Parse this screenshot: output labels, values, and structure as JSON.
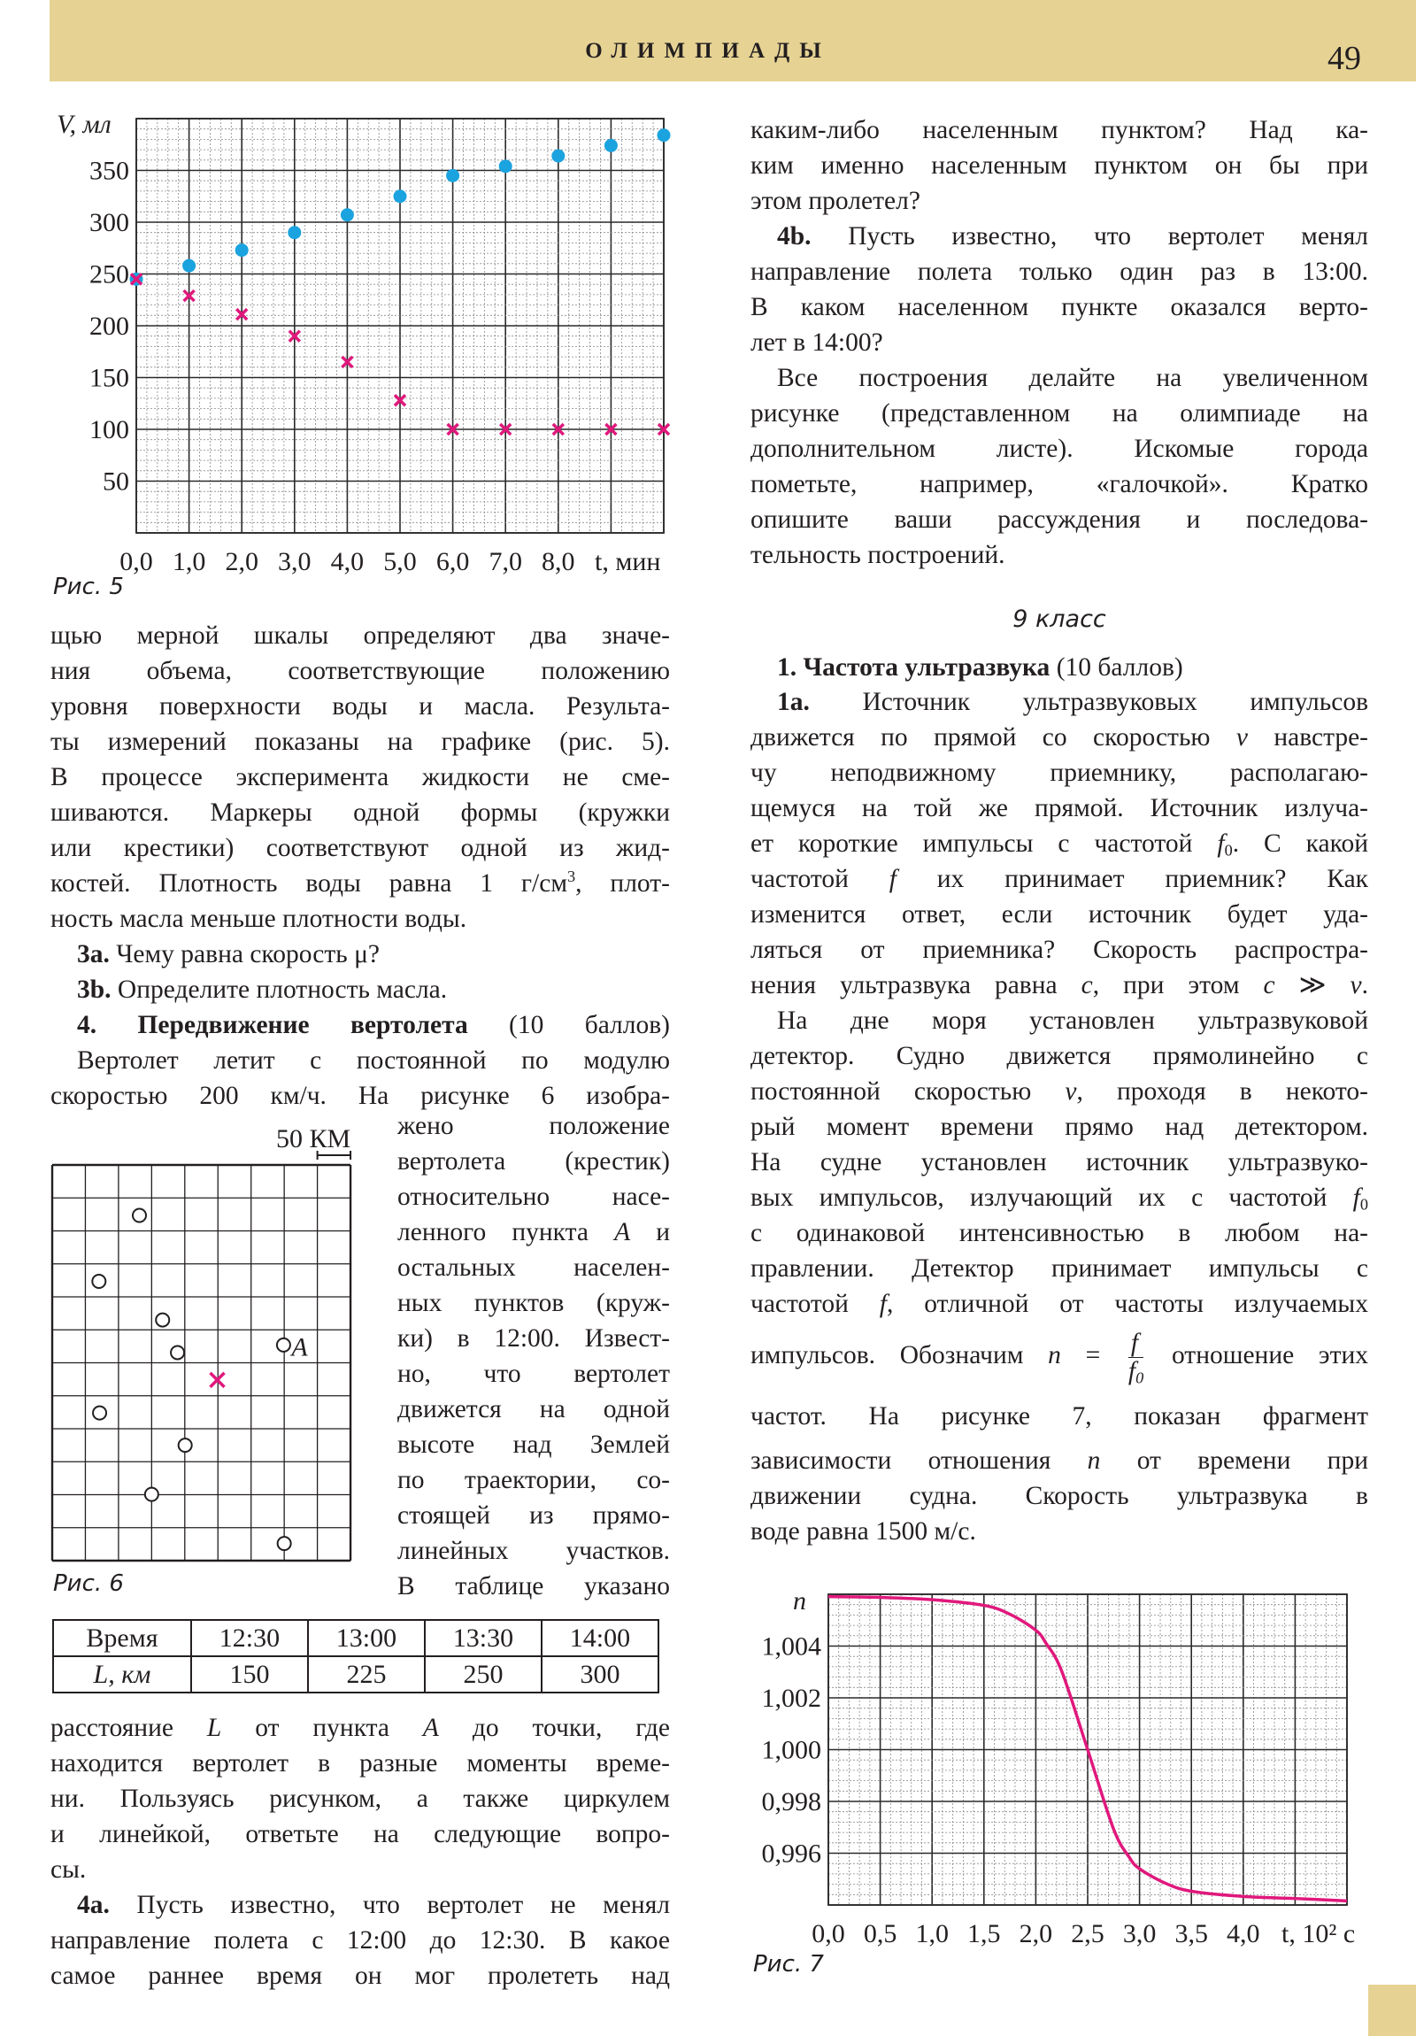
{
  "header": {
    "title": "ОЛИМПИАДЫ",
    "page_number": "49",
    "band_color": "#e6d394"
  },
  "text": {
    "L1": [
      "щью мерной шкалы определяют два значе-",
      "ния объема, соответствующие положению",
      "уровня поверхности воды и масла. Результа-",
      "ты измерений показаны на графике (рис. 5).",
      "В процессе эксперимента жидкости не сме-",
      "шиваются. Маркеры одной формы (кружки",
      "или крестики) соответствуют одной из жид-",
      {
        "s": [
          "костей. Плотность воды равна 1 г/см",
          {
            "sup": "3"
          },
          ", плот-"
        ]
      },
      {
        "s": [
          "ность масла меньше плотности воды."
        ],
        "end": true
      },
      {
        "s": [
          {
            "b": "3a."
          },
          " Чему равна скорость μ?"
        ],
        "ind": true,
        "end": true
      },
      {
        "s": [
          {
            "b": "3b."
          },
          " Определите плотность масла."
        ],
        "ind": true,
        "end": true
      },
      {
        "s": [
          {
            "b": "4. Передвижение вертолета"
          },
          " (10 баллов)"
        ],
        "ind": true
      },
      {
        "s": [
          "Вертолет летит с постоянной по модулю"
        ],
        "ind": true
      },
      "скоростью 200 км/ч. На рисунке 6 изобра-"
    ],
    "L2": [
      "жено положение",
      "вертолета (крестик)",
      "относительно насе-",
      {
        "s": [
          "ленного пункта ",
          {
            "i": "A"
          },
          " и"
        ]
      },
      "остальных населен-",
      "ных пунктов (круж-",
      "ки) в 12:00. Извест-",
      "но, что вертолет",
      "движется на одной",
      "высоте над Землей",
      "по траектории, со-",
      "стоящей из прямо-",
      "линейных участков.",
      "В таблице указано"
    ],
    "L3": [
      {
        "s": [
          "расстояние ",
          {
            "i": "L"
          },
          " от пункта ",
          {
            "i": "A"
          },
          " до точки, где"
        ]
      },
      "находится вертолет в разные моменты време-",
      "ни. Пользуясь рисунком, а также циркулем",
      "и линейкой, ответьте на следующие вопро-",
      {
        "s": [
          "сы."
        ],
        "end": true
      },
      {
        "s": [
          {
            "b": "4a."
          },
          " Пусть известно, что вертолет не менял"
        ],
        "ind": true
      },
      "направление полета с 12:00 до 12:30. В какое",
      "самое раннее время он мог пролететь над"
    ],
    "R1": [
      "каким-либо населенным пунктом? Над ка-",
      "ким именно населенным пунктом он бы при",
      {
        "s": [
          "этом пролетел?"
        ],
        "end": true
      },
      {
        "s": [
          {
            "b": "4b."
          },
          " Пусть известно, что вертолет менял"
        ],
        "ind": true
      },
      "направление полета только один раз в 13:00.",
      "В каком населенном пункте оказался верто-",
      {
        "s": [
          "лет в 14:00?"
        ],
        "end": true
      },
      {
        "s": [
          "Все построения делайте на увеличенном"
        ],
        "ind": true
      },
      "рисунке (представленном на олимпиаде на",
      "дополнительном листе). Искомые города",
      "пометьте, например, «галочкой». Кратко",
      "опишите ваши рассуждения и последова-",
      {
        "s": [
          "тельность построений."
        ],
        "end": true
      }
    ],
    "class_label": "9 класс",
    "R3": [
      {
        "s": [
          {
            "b": "1. Частота ультразвука"
          },
          " (10 баллов)"
        ],
        "ind": true,
        "end": true
      }
    ],
    "R4": [
      {
        "s": [
          {
            "b": "1a."
          },
          " Источник ультразвуковых импульсов"
        ],
        "ind": true
      },
      {
        "s": [
          "движется по прямой со скоростью ",
          {
            "i": "v"
          },
          " навстре-"
        ]
      },
      "чу неподвижному приемнику, располагаю-",
      "щемуся на той же прямой. Источник излуча-",
      {
        "s": [
          "ет короткие импульсы с частотой ",
          {
            "i": "f"
          },
          {
            "sub": "0"
          },
          ". С какой"
        ]
      },
      {
        "s": [
          "частотой ",
          {
            "i": "f"
          },
          " их принимает приемник? Как"
        ]
      },
      "изменится ответ, если источник будет уда-",
      "ляться от приемника? Скорость распростра-",
      {
        "s": [
          "нения ультразвука равна ",
          {
            "i": "c"
          },
          ", при этом ",
          {
            "i": "c"
          },
          " ≫ ",
          {
            "i": "v"
          },
          "."
        ]
      },
      {
        "s": [
          "На дне моря установлен ультразвуковой"
        ],
        "ind": true
      },
      "детектор. Судно движется прямолинейно с",
      {
        "s": [
          "постоянной скоростью ",
          {
            "i": "v"
          },
          ", проходя в некото-"
        ]
      },
      "рый момент времени прямо над детектором.",
      "На судне установлен источник ультразвуко-",
      {
        "s": [
          "вых импульсов, излучающий их с частотой ",
          {
            "i": "f"
          },
          {
            "sub": "0"
          }
        ]
      },
      "с одинаковой интенсивностью в любом на-",
      "правлении. Детектор принимает импульсы с",
      {
        "s": [
          "частотой ",
          {
            "i": "f"
          },
          ", отличной от частоты излучаемых"
        ]
      }
    ],
    "R5": [
      {
        "s": [
          "импульсов. Обозначим ",
          {
            "i": "n"
          },
          " = ",
          {
            "frac": {
              "num": "f",
              "den": "f",
              "den_sub": "0"
            }
          },
          " отношение этих"
        ],
        "tall": true
      }
    ],
    "R6": [
      "частот. На рисунке 7, показан фрагмент"
    ],
    "R7": [
      {
        "s": [
          "зависимости отношения ",
          {
            "i": "n"
          },
          " от времени при"
        ]
      },
      "движении судна. Скорость ультразвука в",
      {
        "s": [
          "воде равна 1500 м/с."
        ],
        "end": true
      }
    ]
  },
  "figure6": {
    "caption": "Рис. 6",
    "scale_label": "50 КМ",
    "point_label": "A",
    "helicopter_color": "#e0187c"
  },
  "table": {
    "rows": [
      [
        "Время",
        "12:30",
        "13:00",
        "13:30",
        "14:00"
      ],
      [
        "L, км",
        "150",
        "225",
        "250",
        "300"
      ]
    ]
  },
  "chart_data": [
    {
      "type": "scatter",
      "caption": "Рис. 5",
      "ylabel": "V, мл",
      "xlabel": "t, мин",
      "xlim": [
        0,
        10
      ],
      "ylim": [
        0,
        400
      ],
      "grid": true,
      "x_ticks": {
        "values": [
          0,
          1,
          2,
          3,
          4,
          5,
          6,
          7,
          8
        ],
        "labels": [
          "0,0",
          "1,0",
          "2,0",
          "3,0",
          "4,0",
          "5,0",
          "6,0",
          "7,0",
          "8,0"
        ]
      },
      "y_ticks": {
        "values": [
          50,
          100,
          150,
          200,
          250,
          300,
          350
        ],
        "labels": [
          "50",
          "100",
          "150",
          "200",
          "250",
          "300",
          "350"
        ]
      },
      "series": [
        {
          "marker": "circle",
          "color": "#1aa3df",
          "x": [
            0,
            1,
            2,
            3,
            4,
            5,
            6,
            7,
            8,
            9,
            10
          ],
          "y": [
            245,
            258,
            273,
            290,
            307,
            325,
            345,
            354,
            364,
            374,
            384
          ]
        },
        {
          "marker": "cross",
          "color": "#e0187c",
          "x": [
            0,
            1,
            2,
            3,
            4,
            5,
            6,
            7,
            8,
            9,
            10
          ],
          "y": [
            245,
            229,
            211,
            190,
            165,
            128,
            100,
            100,
            100,
            100,
            100
          ]
        }
      ]
    },
    {
      "type": "line",
      "caption": "Рис. 7",
      "ylabel": "n",
      "xlabel": "t, 10² с",
      "xlim": [
        0,
        5
      ],
      "ylim": [
        0.994,
        1.006
      ],
      "grid": true,
      "x_ticks": {
        "values": [
          0,
          0.5,
          1,
          1.5,
          2,
          2.5,
          3,
          3.5,
          4
        ],
        "labels": [
          "0,0",
          "0,5",
          "1,0",
          "1,5",
          "2,0",
          "2,5",
          "3,0",
          "3,5",
          "4,0"
        ]
      },
      "y_ticks": {
        "values": [
          1.004,
          1.002,
          1.0,
          0.998,
          0.996
        ],
        "labels": [
          "1,004",
          "1,002",
          "1,000",
          "0,998",
          "0,996"
        ]
      },
      "series": [
        {
          "color": "#e0187c",
          "x": [
            0,
            0.5,
            1.0,
            1.5,
            1.75,
            2.0,
            2.1,
            2.25,
            2.5,
            2.75,
            2.9,
            3.0,
            3.25,
            3.5,
            4.0,
            4.5,
            5.0
          ],
          "y": [
            1.00591,
            1.00588,
            1.00579,
            1.00557,
            1.00523,
            1.00461,
            1.0041,
            1.00303,
            1.0,
            0.99693,
            0.99585,
            0.9954,
            0.99484,
            0.99453,
            0.99433,
            0.99425,
            0.99416
          ]
        }
      ]
    }
  ]
}
